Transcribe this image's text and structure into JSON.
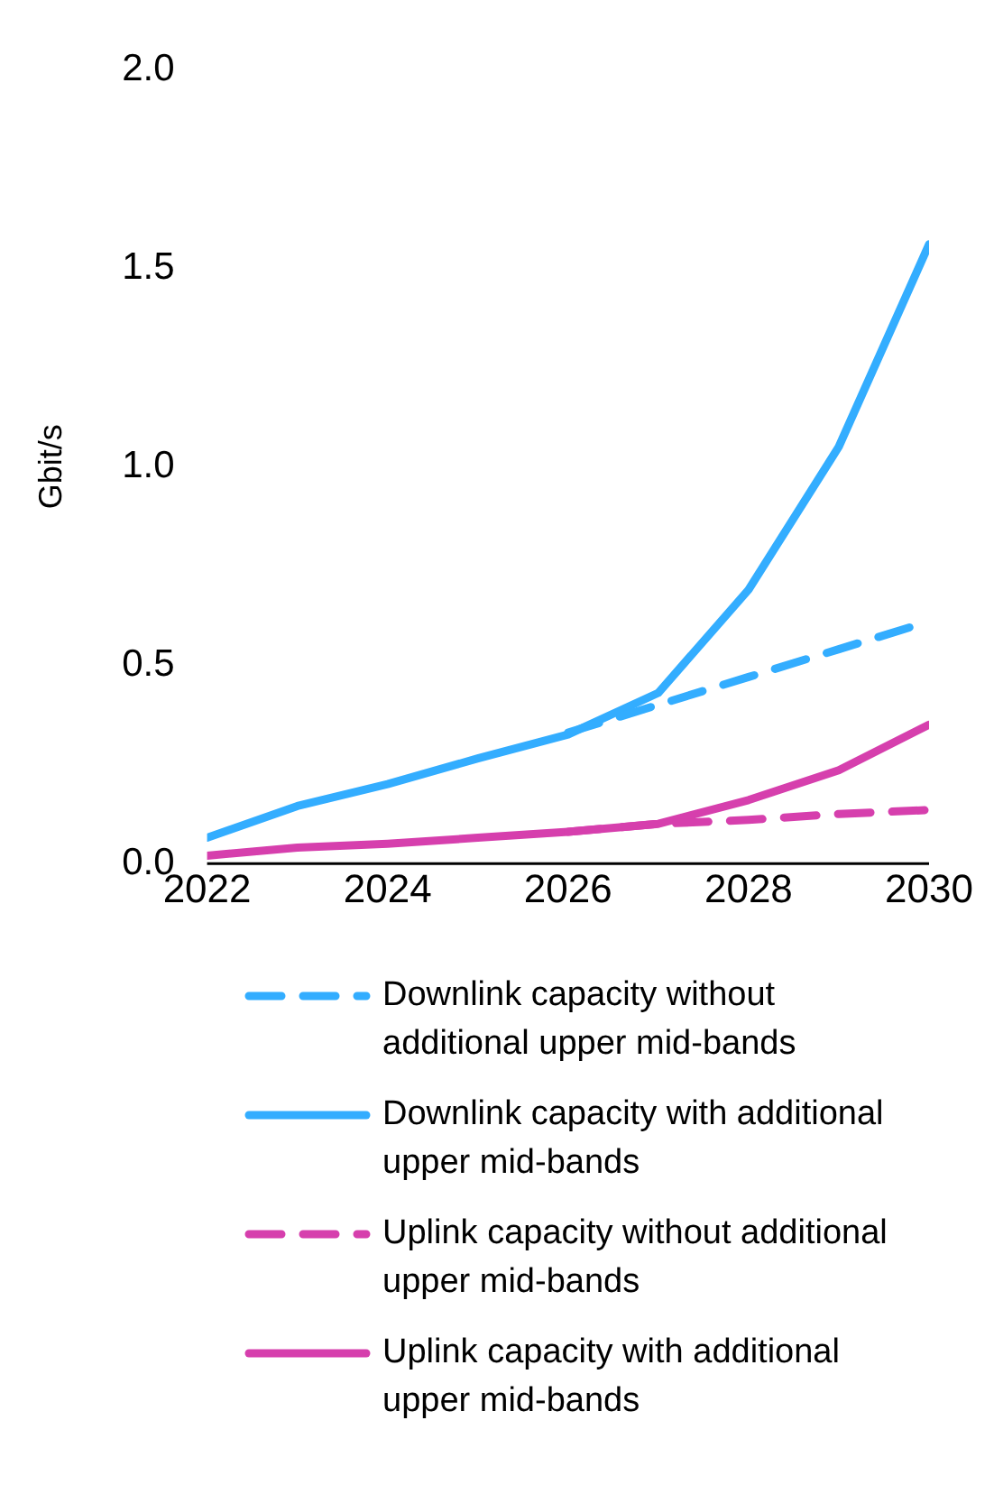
{
  "chart_data": {
    "type": "line",
    "ylabel": "Gbit/s",
    "x": [
      2022,
      2023,
      2024,
      2025,
      2026,
      2027,
      2028,
      2029,
      2030
    ],
    "xlim": [
      2022,
      2030
    ],
    "xticks": [
      2022,
      2024,
      2026,
      2028,
      2030
    ],
    "ylim": [
      0,
      2
    ],
    "yticks": [
      {
        "value": 0,
        "label": "0.0"
      },
      0.5,
      {
        "value": 1,
        "label": "1.0"
      },
      1.5,
      {
        "value": 2,
        "label": "2.0"
      }
    ],
    "grid": false,
    "legend": "bottom",
    "marker": "none",
    "series": [
      {
        "name": "Downlink capacity without additional upper mid-bands",
        "color": "#33adff",
        "line_style": "dashed",
        "values": [
          null,
          null,
          null,
          null,
          0.33,
          0.4,
          0.47,
          0.54,
          0.61
        ]
      },
      {
        "name": "Downlink capacity with additional upper mid-bands",
        "color": "#33adff",
        "line_style": "solid",
        "values": [
          0.065,
          0.145,
          0.2,
          0.265,
          0.325,
          0.43,
          0.69,
          1.05,
          1.56
        ]
      },
      {
        "name": "Uplink capacity without additional upper mid-bands",
        "color": "#d63fad",
        "line_style": "dashed",
        "values": [
          null,
          null,
          null,
          null,
          0.08,
          0.1,
          0.11,
          0.125,
          0.135
        ]
      },
      {
        "name": "Uplink capacity with additional upper mid-bands",
        "color": "#d63fad",
        "line_style": "solid",
        "values": [
          0.02,
          0.04,
          0.05,
          0.065,
          0.08,
          0.1,
          0.16,
          0.235,
          0.35
        ]
      }
    ]
  }
}
